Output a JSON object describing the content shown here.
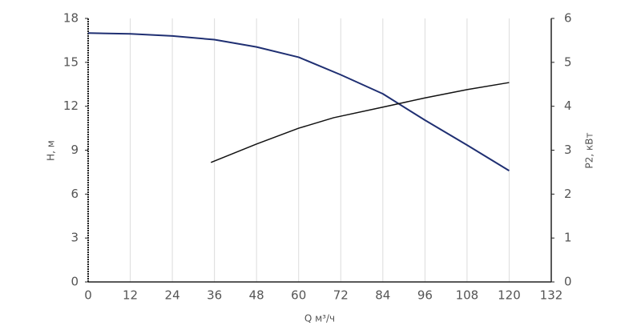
{
  "chart_data": {
    "type": "line",
    "x_label": "Q м³/ч",
    "y_label": "H, м",
    "y2_label": "P2, кВт",
    "xlim": [
      0,
      132
    ],
    "xticks": [
      0,
      12,
      24,
      36,
      48,
      60,
      72,
      84,
      96,
      108,
      120,
      132
    ],
    "ylim": [
      0,
      18
    ],
    "yticks": [
      0,
      3,
      6,
      9,
      12,
      15,
      18
    ],
    "y2lim": [
      0,
      6
    ],
    "y2ticks": [
      0,
      1,
      2,
      3,
      4,
      5,
      6
    ],
    "grid": true,
    "series": [
      {
        "color": "#1f2f72",
        "x": [
          0,
          12,
          24,
          36,
          48,
          60,
          72,
          84,
          96,
          108,
          120
        ],
        "values": [
          17.0,
          16.95,
          16.8,
          16.55,
          16.05,
          15.35,
          14.15,
          12.85,
          11.05,
          9.35,
          7.6
        ]
      },
      {
        "color": "#111111",
        "axis": "y2",
        "x": [
          35,
          48,
          60,
          70,
          84,
          96,
          108,
          120
        ],
        "values": [
          2.72,
          3.14,
          3.5,
          3.74,
          3.98,
          4.19,
          4.38,
          4.54
        ]
      }
    ]
  }
}
